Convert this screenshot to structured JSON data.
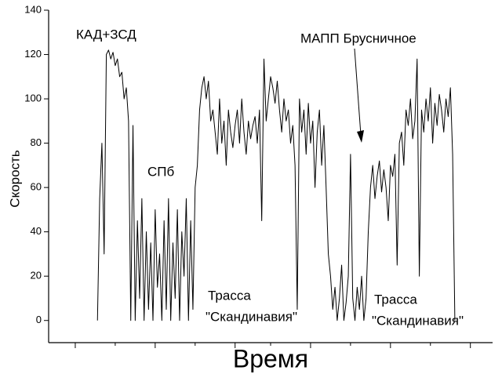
{
  "chart_data": {
    "type": "line",
    "xlabel": "Время",
    "ylabel": "Скорость",
    "annotations": [
      "КАД+ЗСД",
      "СПб",
      "МАПП Брусничное",
      "Трасса",
      "\"Скандинавия\"",
      "Трасса",
      "\"Скандинавия\""
    ],
    "color": "#000000",
    "xlim": [
      0,
      100
    ],
    "ylim": [
      -10,
      140
    ],
    "xticks": [
      6,
      15,
      24,
      33,
      42,
      50,
      59,
      68,
      77,
      86,
      95
    ],
    "yticks": [
      0,
      20,
      40,
      60,
      80,
      100,
      120,
      140
    ],
    "x": [
      11,
      11.5,
      12,
      12.5,
      13,
      13.5,
      14,
      14.5,
      15,
      15.5,
      16,
      16.5,
      17,
      17.5,
      18,
      18.5,
      19,
      19.5,
      20,
      20.5,
      21,
      21.5,
      22,
      22.5,
      23,
      23.5,
      24,
      24.5,
      25,
      25.5,
      26,
      26.5,
      27,
      27.5,
      28,
      28.5,
      29,
      29.5,
      30,
      30.5,
      31,
      31.5,
      32,
      32.5,
      33,
      33.5,
      34,
      34.5,
      35,
      35.5,
      36,
      36.5,
      37,
      37.5,
      38,
      38.5,
      39,
      39.5,
      40,
      40.5,
      41,
      41.5,
      42,
      42.5,
      43,
      43.5,
      44,
      44.5,
      45,
      45.5,
      46,
      46.5,
      47,
      47.5,
      48,
      48.5,
      49,
      49.5,
      50,
      50.5,
      51,
      51.5,
      52,
      52.5,
      53,
      53.5,
      54,
      54.5,
      55,
      55.5,
      56,
      56.5,
      57,
      57.5,
      58,
      58.5,
      59,
      59.5,
      60,
      60.5,
      61,
      61.5,
      62,
      62.5,
      63,
      63.5,
      64,
      64.5,
      65,
      65.5,
      66,
      66.5,
      67,
      67.5,
      68,
      68.5,
      69,
      69.5,
      70,
      70.5,
      71,
      71.5,
      72,
      72.5,
      73,
      73.5,
      74,
      74.5,
      75,
      75.5,
      76,
      76.5,
      77,
      77.5,
      78,
      78.5,
      79,
      79.5,
      80,
      80.5,
      81,
      81.5,
      82,
      82.5,
      83,
      83.5,
      84,
      84.5,
      85,
      85.5,
      86,
      86.5,
      87,
      87.5,
      88,
      88.5,
      89,
      89.5,
      90,
      90.5,
      91,
      91.5
    ],
    "values": [
      0,
      55,
      80,
      30,
      120,
      122,
      118,
      121,
      115,
      118,
      110,
      112,
      100,
      105,
      90,
      0,
      88,
      0,
      45,
      10,
      55,
      0,
      40,
      5,
      35,
      0,
      50,
      15,
      30,
      0,
      45,
      5,
      55,
      0,
      35,
      10,
      50,
      0,
      40,
      20,
      55,
      0,
      45,
      5,
      60,
      70,
      95,
      105,
      110,
      100,
      108,
      90,
      95,
      85,
      75,
      100,
      80,
      90,
      70,
      95,
      85,
      78,
      88,
      95,
      80,
      100,
      85,
      75,
      90,
      82,
      88,
      92,
      80,
      95,
      45,
      118,
      90,
      100,
      110,
      105,
      98,
      108,
      95,
      85,
      100,
      90,
      95,
      80,
      88,
      70,
      5,
      100,
      85,
      95,
      75,
      98,
      80,
      90,
      60,
      85,
      95,
      70,
      88,
      60,
      30,
      20,
      5,
      15,
      0,
      10,
      25,
      0,
      8,
      20,
      75,
      10,
      0,
      15,
      5,
      20,
      0,
      10,
      40,
      60,
      70,
      55,
      65,
      72,
      58,
      68,
      60,
      45,
      70,
      65,
      75,
      25,
      80,
      85,
      70,
      95,
      88,
      100,
      82,
      90,
      118,
      20,
      95,
      85,
      100,
      90,
      105,
      80,
      98,
      88,
      102,
      95,
      85,
      100,
      92,
      105,
      75,
      0
    ]
  }
}
